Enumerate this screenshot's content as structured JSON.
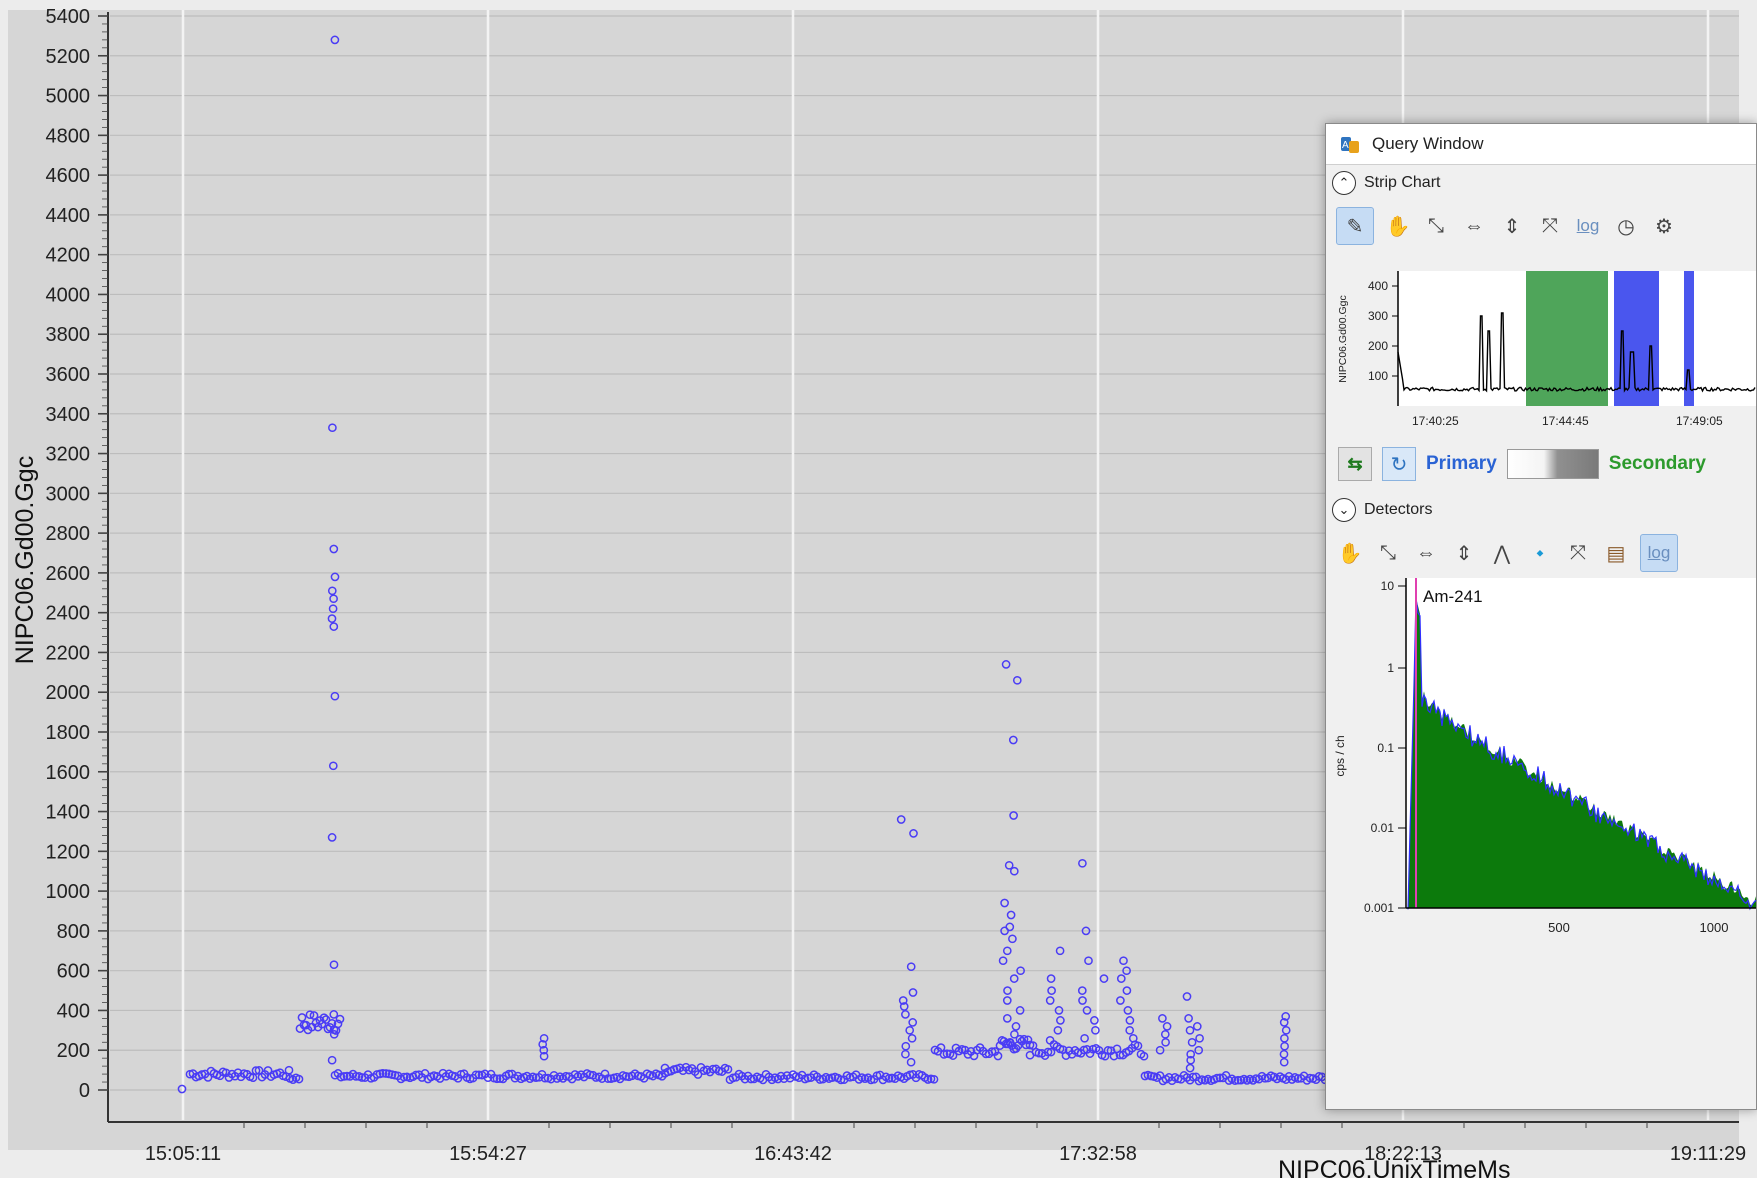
{
  "main_chart": {
    "ylabel": "NIPC06.Gd00.Ggc",
    "xlabel": "NIPC06.UnixTimeMs",
    "y_ticks": [
      "5400",
      "5200",
      "5000",
      "4800",
      "4600",
      "4400",
      "4200",
      "4000",
      "3800",
      "3600",
      "3400",
      "3200",
      "3000",
      "2800",
      "2600",
      "2400",
      "2200",
      "2000",
      "1800",
      "1600",
      "1400",
      "1200",
      "1000",
      "800",
      "600",
      "400",
      "200",
      "0"
    ],
    "x_ticks": [
      "15:05:11",
      "15:54:27",
      "16:43:42",
      "17:32:58",
      "18:22:13",
      "19:11:29"
    ],
    "point_color": "#4a3cf5"
  },
  "query_window": {
    "title": "Query Window",
    "strip_chart": {
      "header": "Strip Chart",
      "log_label": "log",
      "ylabel": "NIPC06.Gd00.Ggc",
      "y_ticks": [
        "400",
        "300",
        "200",
        "100"
      ],
      "x_ticks": [
        "17:40:25",
        "17:44:45",
        "17:49:05"
      ],
      "green_band_color": "#4fa55a",
      "blue_band_color": "#4a56ee"
    },
    "selector": {
      "primary_label": "Primary",
      "secondary_label": "Secondary"
    },
    "detectors": {
      "header": "Detectors",
      "log_label": "log",
      "ylabel": "cps / ch",
      "y_ticks": [
        "10",
        "1",
        "0.1",
        "0.01",
        "0.001"
      ],
      "x_ticks": [
        "500",
        "1000"
      ],
      "isotope_label": "Am-241",
      "fill_color": "#0c7a0c",
      "overlay_color": "#2f2fff",
      "marker_color": "#e040b0"
    }
  }
}
